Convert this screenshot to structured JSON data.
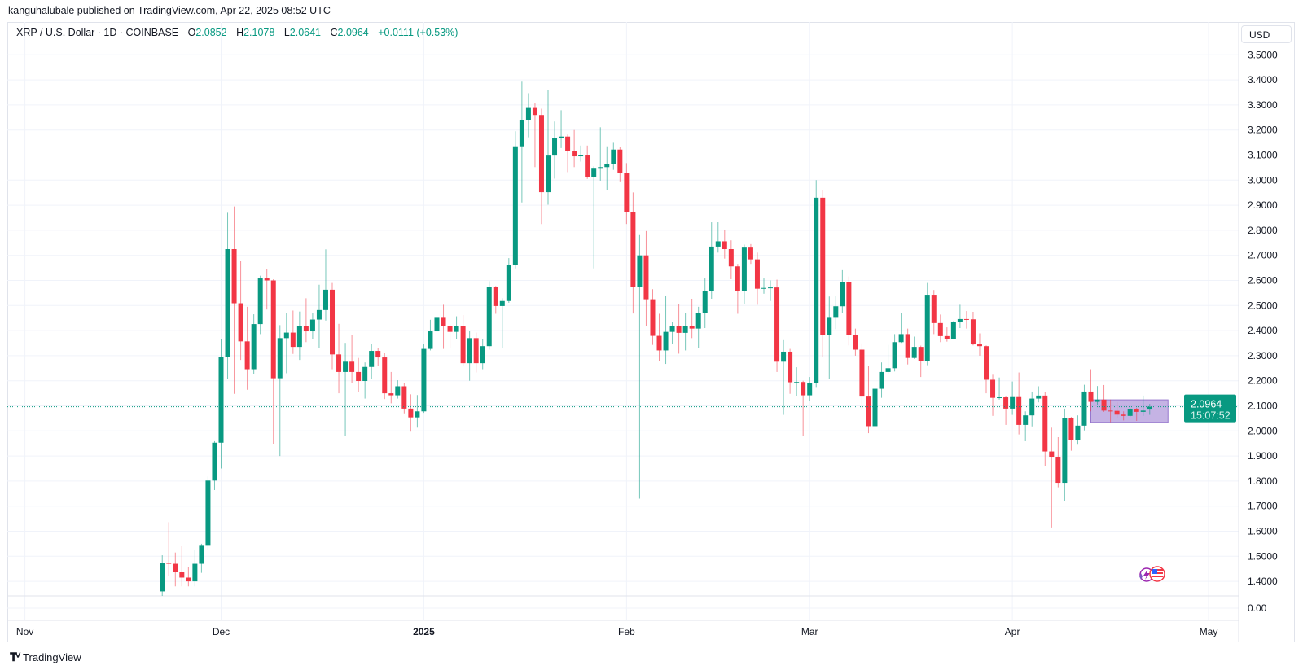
{
  "header": {
    "published_line": "kanguhalubale published on TradingView.com, Apr 22, 2025 08:52 UTC"
  },
  "legend": {
    "symbol": "XRP / U.S. Dollar · 1D · COINBASE",
    "open_label": "O",
    "open": "2.0852",
    "high_label": "H",
    "high": "2.1078",
    "low_label": "L",
    "low": "2.0641",
    "close_label": "C",
    "close": "2.0964",
    "change": "+0.0111 (+0.53%)"
  },
  "price_axis": {
    "currency": "USD",
    "volume_axis_label": "0.00"
  },
  "footer": {
    "logo_text": "TradingView"
  },
  "colors": {
    "up": "#089981",
    "down": "#f23645",
    "range_box": "#9575cd",
    "grid": "#f0f3fa"
  },
  "chart_data": {
    "type": "candlestick",
    "title": "XRP / U.S. Dollar · 1D · COINBASE",
    "ylabel": "USD",
    "ylim": [
      1.4,
      3.5
    ],
    "y_ticks": [
      "3.5000",
      "3.4000",
      "3.3000",
      "3.2000",
      "3.1000",
      "3.0000",
      "2.9000",
      "2.8000",
      "2.7000",
      "2.6000",
      "2.5000",
      "2.4000",
      "2.3000",
      "2.2000",
      "2.1000",
      "2.0000",
      "1.9000",
      "1.8000",
      "1.7000",
      "1.6000",
      "1.5000",
      "1.4000"
    ],
    "x_unit": "days since Nov 1, 2024",
    "x_ticks": [
      {
        "label": "Nov",
        "day": 0,
        "bold": false
      },
      {
        "label": "Dec",
        "day": 30,
        "bold": false
      },
      {
        "label": "2025",
        "day": 61,
        "bold": true
      },
      {
        "label": "Feb",
        "day": 92,
        "bold": false
      },
      {
        "label": "Mar",
        "day": 120,
        "bold": false
      },
      {
        "label": "Apr",
        "day": 151,
        "bold": false
      },
      {
        "label": "May",
        "day": 181,
        "bold": false
      }
    ],
    "grid": true,
    "first_candle_day": 21,
    "ohlc_fields": [
      "open",
      "high",
      "low",
      "close"
    ],
    "candles": [
      [
        1.36,
        1.504,
        1.34,
        1.475
      ],
      [
        1.475,
        1.636,
        1.423,
        1.47
      ],
      [
        1.47,
        1.515,
        1.38,
        1.436
      ],
      [
        1.436,
        1.54,
        1.38,
        1.415
      ],
      [
        1.415,
        1.457,
        1.38,
        1.4
      ],
      [
        1.4,
        1.526,
        1.38,
        1.47
      ],
      [
        1.47,
        1.55,
        1.434,
        1.542
      ],
      [
        1.542,
        1.818,
        1.526,
        1.802
      ],
      [
        1.802,
        1.959,
        1.764,
        1.953
      ],
      [
        1.953,
        2.365,
        1.85,
        2.294
      ],
      [
        2.294,
        2.87,
        2.208,
        2.725
      ],
      [
        2.725,
        2.895,
        2.148,
        2.509
      ],
      [
        2.509,
        2.678,
        2.283,
        2.357
      ],
      [
        2.357,
        2.495,
        2.164,
        2.246
      ],
      [
        2.246,
        2.465,
        2.226,
        2.426
      ],
      [
        2.426,
        2.619,
        2.386,
        2.608
      ],
      [
        2.608,
        2.644,
        2.484,
        2.6
      ],
      [
        2.6,
        2.605,
        1.948,
        2.21
      ],
      [
        2.21,
        2.422,
        1.9,
        2.37
      ],
      [
        2.37,
        2.47,
        2.23,
        2.392
      ],
      [
        2.392,
        2.48,
        2.307,
        2.335
      ],
      [
        2.335,
        2.476,
        2.283,
        2.419
      ],
      [
        2.419,
        2.529,
        2.354,
        2.397
      ],
      [
        2.397,
        2.47,
        2.367,
        2.444
      ],
      [
        2.444,
        2.583,
        2.332,
        2.482
      ],
      [
        2.482,
        2.724,
        2.44,
        2.563
      ],
      [
        2.563,
        2.59,
        2.246,
        2.305
      ],
      [
        2.305,
        2.427,
        2.15,
        2.235
      ],
      [
        2.235,
        2.351,
        1.98,
        2.276
      ],
      [
        2.276,
        2.381,
        2.192,
        2.235
      ],
      [
        2.235,
        2.291,
        2.154,
        2.199
      ],
      [
        2.199,
        2.273,
        2.129,
        2.255
      ],
      [
        2.255,
        2.346,
        2.208,
        2.319
      ],
      [
        2.319,
        2.33,
        2.259,
        2.293
      ],
      [
        2.293,
        2.311,
        2.127,
        2.15
      ],
      [
        2.15,
        2.235,
        2.11,
        2.142
      ],
      [
        2.142,
        2.202,
        2.129,
        2.178
      ],
      [
        2.178,
        2.192,
        2.07,
        2.089
      ],
      [
        2.089,
        2.146,
        1.997,
        2.054
      ],
      [
        2.054,
        2.143,
        2.013,
        2.078
      ],
      [
        2.078,
        2.345,
        2.072,
        2.327
      ],
      [
        2.327,
        2.443,
        2.321,
        2.397
      ],
      [
        2.397,
        2.475,
        2.392,
        2.451
      ],
      [
        2.451,
        2.503,
        2.327,
        2.417
      ],
      [
        2.417,
        2.424,
        2.329,
        2.395
      ],
      [
        2.395,
        2.457,
        2.365,
        2.419
      ],
      [
        2.419,
        2.462,
        2.257,
        2.27
      ],
      [
        2.27,
        2.397,
        2.2,
        2.37
      ],
      [
        2.37,
        2.392,
        2.233,
        2.27
      ],
      [
        2.27,
        2.365,
        2.246,
        2.338
      ],
      [
        2.338,
        2.597,
        2.324,
        2.573
      ],
      [
        2.573,
        2.578,
        2.467,
        2.498
      ],
      [
        2.498,
        2.529,
        2.332,
        2.518
      ],
      [
        2.518,
        2.689,
        2.511,
        2.662
      ],
      [
        2.662,
        3.195,
        2.648,
        3.135
      ],
      [
        3.135,
        3.393,
        2.911,
        3.239
      ],
      [
        3.239,
        3.347,
        3.171,
        3.288
      ],
      [
        3.288,
        3.308,
        3.052,
        3.26
      ],
      [
        3.26,
        3.285,
        2.825,
        2.952
      ],
      [
        2.952,
        3.358,
        2.902,
        3.098
      ],
      [
        3.098,
        3.234,
        3.006,
        3.169
      ],
      [
        3.169,
        3.279,
        3.128,
        3.174
      ],
      [
        3.174,
        3.182,
        3.032,
        3.115
      ],
      [
        3.115,
        3.2,
        3.052,
        3.095
      ],
      [
        3.095,
        3.138,
        3.074,
        3.1
      ],
      [
        3.1,
        3.138,
        3.005,
        3.014
      ],
      [
        3.014,
        3.055,
        2.648,
        3.049
      ],
      [
        3.049,
        3.211,
        2.998,
        3.052
      ],
      [
        3.052,
        3.135,
        2.962,
        3.063
      ],
      [
        3.063,
        3.149,
        3.041,
        3.122
      ],
      [
        3.122,
        3.131,
        2.995,
        3.03
      ],
      [
        3.03,
        3.068,
        2.825,
        2.873
      ],
      [
        2.873,
        2.951,
        2.468,
        2.574
      ],
      [
        2.574,
        2.781,
        1.73,
        2.7
      ],
      [
        2.7,
        2.797,
        2.419,
        2.525
      ],
      [
        2.525,
        2.565,
        2.343,
        2.379
      ],
      [
        2.379,
        2.467,
        2.278,
        2.321
      ],
      [
        2.321,
        2.54,
        2.267,
        2.395
      ],
      [
        2.395,
        2.435,
        2.348,
        2.417
      ],
      [
        2.417,
        2.505,
        2.308,
        2.391
      ],
      [
        2.391,
        2.471,
        2.321,
        2.419
      ],
      [
        2.419,
        2.527,
        2.37,
        2.408
      ],
      [
        2.408,
        2.495,
        2.33,
        2.47
      ],
      [
        2.47,
        2.608,
        2.41,
        2.558
      ],
      [
        2.558,
        2.832,
        2.527,
        2.735
      ],
      [
        2.735,
        2.832,
        2.711,
        2.756
      ],
      [
        2.756,
        2.803,
        2.687,
        2.725
      ],
      [
        2.725,
        2.76,
        2.605,
        2.656
      ],
      [
        2.656,
        2.666,
        2.467,
        2.557
      ],
      [
        2.557,
        2.743,
        2.507,
        2.731
      ],
      [
        2.731,
        2.745,
        2.666,
        2.684
      ],
      [
        2.684,
        2.711,
        2.503,
        2.567
      ],
      [
        2.567,
        2.608,
        2.547,
        2.57
      ],
      [
        2.57,
        2.6,
        2.518,
        2.572
      ],
      [
        2.572,
        2.603,
        2.235,
        2.276
      ],
      [
        2.276,
        2.362,
        2.064,
        2.316
      ],
      [
        2.316,
        2.327,
        2.148,
        2.194
      ],
      [
        2.194,
        2.254,
        2.14,
        2.195
      ],
      [
        2.195,
        2.2,
        1.98,
        2.142
      ],
      [
        2.142,
        2.215,
        2.121,
        2.19
      ],
      [
        2.19,
        3.0,
        2.175,
        2.93
      ],
      [
        2.93,
        2.96,
        2.294,
        2.384
      ],
      [
        2.384,
        2.536,
        2.208,
        2.451
      ],
      [
        2.451,
        2.538,
        2.406,
        2.497
      ],
      [
        2.497,
        2.641,
        2.471,
        2.594
      ],
      [
        2.594,
        2.616,
        2.341,
        2.381
      ],
      [
        2.381,
        2.408,
        2.3,
        2.324
      ],
      [
        2.324,
        2.349,
        2.083,
        2.137
      ],
      [
        2.137,
        2.259,
        1.991,
        2.019
      ],
      [
        2.019,
        2.211,
        1.92,
        2.168
      ],
      [
        2.168,
        2.273,
        2.132,
        2.235
      ],
      [
        2.235,
        2.343,
        2.225,
        2.25
      ],
      [
        2.25,
        2.386,
        2.237,
        2.354
      ],
      [
        2.354,
        2.471,
        2.351,
        2.386
      ],
      [
        2.386,
        2.408,
        2.265,
        2.291
      ],
      [
        2.291,
        2.376,
        2.287,
        2.335
      ],
      [
        2.335,
        2.34,
        2.215,
        2.28
      ],
      [
        2.28,
        2.59,
        2.262,
        2.543
      ],
      [
        2.543,
        2.562,
        2.386,
        2.43
      ],
      [
        2.43,
        2.464,
        2.354,
        2.378
      ],
      [
        2.378,
        2.413,
        2.356,
        2.367
      ],
      [
        2.367,
        2.438,
        2.365,
        2.435
      ],
      [
        2.435,
        2.503,
        2.41,
        2.446
      ],
      [
        2.446,
        2.478,
        2.408,
        2.445
      ],
      [
        2.445,
        2.475,
        2.341,
        2.345
      ],
      [
        2.345,
        2.389,
        2.3,
        2.338
      ],
      [
        2.338,
        2.341,
        2.15,
        2.204
      ],
      [
        2.204,
        2.224,
        2.06,
        2.132
      ],
      [
        2.132,
        2.213,
        2.125,
        2.134
      ],
      [
        2.134,
        2.14,
        2.024,
        2.089
      ],
      [
        2.089,
        2.197,
        2.064,
        2.135
      ],
      [
        2.135,
        2.233,
        1.986,
        2.024
      ],
      [
        2.024,
        2.078,
        1.959,
        2.062
      ],
      [
        2.062,
        2.157,
        2.018,
        2.129
      ],
      [
        2.129,
        2.178,
        2.114,
        2.141
      ],
      [
        2.141,
        2.154,
        1.861,
        1.918
      ],
      [
        1.918,
        2.013,
        1.615,
        1.897
      ],
      [
        1.897,
        1.975,
        1.775,
        1.793
      ],
      [
        1.793,
        2.089,
        1.721,
        2.051
      ],
      [
        2.051,
        2.056,
        1.921,
        1.964
      ],
      [
        1.964,
        2.062,
        1.945,
        2.021
      ],
      [
        2.021,
        2.184,
        2.002,
        2.157
      ],
      [
        2.157,
        2.246,
        2.078,
        2.116
      ],
      [
        2.116,
        2.179,
        2.103,
        2.125
      ],
      [
        2.125,
        2.183,
        2.076,
        2.081
      ],
      [
        2.081,
        2.125,
        2.035,
        2.08
      ],
      [
        2.08,
        2.114,
        2.051,
        2.065
      ],
      [
        2.065,
        2.078,
        2.042,
        2.06
      ],
      [
        2.06,
        2.092,
        2.056,
        2.087
      ],
      [
        2.087,
        2.092,
        2.04,
        2.076
      ],
      [
        2.076,
        2.141,
        2.06,
        2.081
      ],
      [
        2.0852,
        2.1078,
        2.0641,
        2.0964
      ]
    ],
    "last_price": 2.0964,
    "last_price_label": "2.0964",
    "countdown": "15:07:52",
    "range_box": {
      "day_start": 163,
      "day_end": 174.8,
      "price_low": 2.034,
      "price_high": 2.124
    },
    "event_icons": [
      "ideas-lightning-icon",
      "us-flag-economic-event-icon"
    ]
  }
}
